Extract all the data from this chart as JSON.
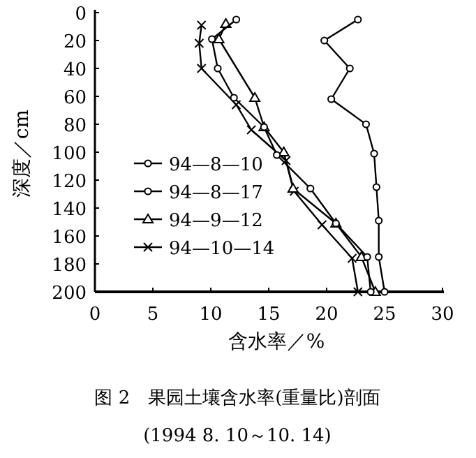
{
  "chart_data": {
    "type": "line",
    "title": "图 2　果园土壤含水率(重量比)剖面",
    "subtitle": "(1994 8. 10～10. 14)",
    "xlabel": "含水率／%",
    "ylabel": "深度／cm",
    "xlim": [
      0,
      30
    ],
    "xticks": [
      0,
      5,
      10,
      15,
      20,
      25,
      30
    ],
    "ylim": [
      200,
      0
    ],
    "yticks": [
      0,
      20,
      40,
      60,
      80,
      100,
      120,
      140,
      160,
      180,
      200
    ],
    "grid": false,
    "legend": "bottom left",
    "line_style": "solid",
    "series": [
      {
        "name": "94—8—10",
        "color": "#000000",
        "marker": "circle",
        "x": [
          12.2,
          10.1,
          10.6,
          12.0,
          14.6,
          15.7,
          18.6,
          20.8,
          23.5,
          23.8
        ],
        "values": [
          5,
          19,
          40,
          61,
          82,
          102,
          126,
          151,
          175,
          200
        ]
      },
      {
        "name": "94—8—17",
        "color": "#000000",
        "marker": "circle",
        "x": [
          22.7,
          19.8,
          22.0,
          20.4,
          23.4,
          24.1,
          24.3,
          24.5,
          24.5,
          25.0
        ],
        "values": [
          5,
          20,
          40,
          62,
          80,
          101,
          125,
          149,
          175,
          200
        ]
      },
      {
        "name": "94—9—12",
        "color": "#000000",
        "marker": "triangle",
        "x": [
          11.3,
          10.7,
          13.8,
          14.6,
          16.3,
          17.1,
          20.8,
          23.0,
          24.2
        ],
        "values": [
          8,
          19,
          61,
          82,
          100,
          126,
          151,
          175,
          200
        ]
      },
      {
        "name": "94—10—14",
        "color": "#000000",
        "marker": "cross",
        "x": [
          9.2,
          9.0,
          9.2,
          12.2,
          13.5,
          16.5,
          17.2,
          19.6,
          22.2,
          22.7
        ],
        "values": [
          9,
          22,
          40,
          66,
          84,
          106,
          128,
          152,
          176,
          200
        ]
      }
    ]
  }
}
